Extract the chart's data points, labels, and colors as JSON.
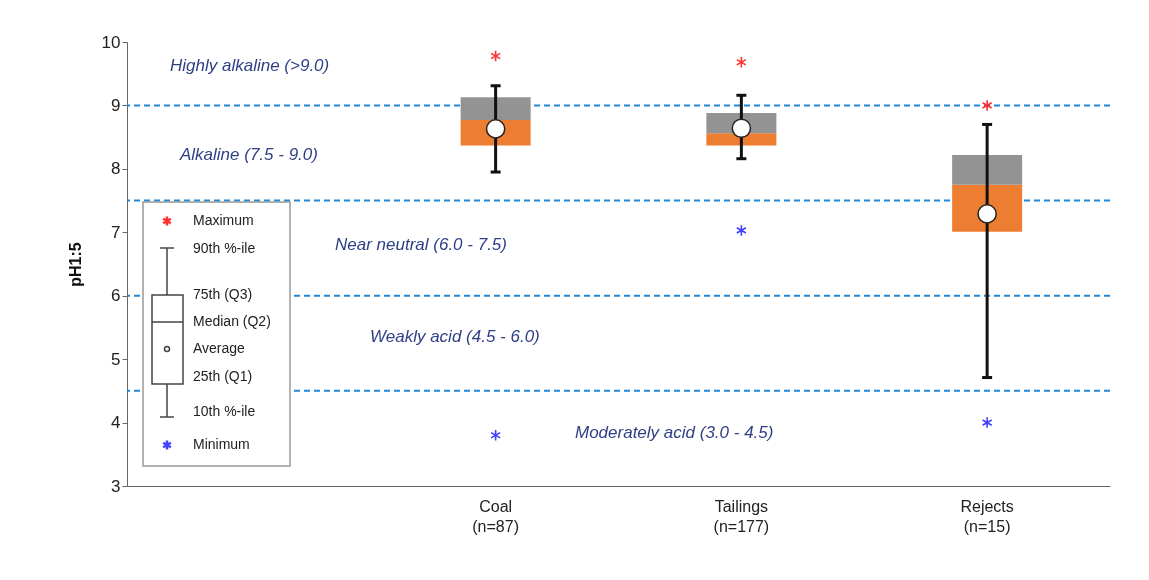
{
  "chart_data": {
    "type": "box",
    "ylabel": "pH1:5",
    "categories": [
      null,
      "Coal\n(n=87)",
      "Tailings\n(n=177)",
      "Rejects\n(n=15)"
    ],
    "boxes": [
      null,
      {
        "low": 7.95,
        "q1": 8.37,
        "median": 8.77,
        "q3": 9.13,
        "high": 9.31,
        "mean": 8.63
      },
      {
        "low": 8.16,
        "q1": 8.37,
        "median": 8.56,
        "q3": 8.88,
        "high": 9.16,
        "mean": 8.64
      },
      {
        "low": 4.71,
        "q1": 7.01,
        "median": 7.75,
        "q3": 8.22,
        "high": 8.7,
        "mean": 7.29
      }
    ],
    "colors": [
      null,
      [
        "#ed7d31",
        "#939393"
      ],
      [
        "#ed7d31",
        "#939393"
      ],
      [
        "#ed7d31",
        "#939393"
      ]
    ],
    "series": [
      {
        "type": "scatter",
        "name": "Maximum",
        "color": "#ff3030",
        "x": [
          "Coal\n(n=87)",
          "Tailings\n(n=177)",
          "Rejects\n(n=15)"
        ],
        "values": [
          9.78,
          9.68,
          9.0
        ]
      },
      {
        "type": "scatter",
        "name": "Minimum",
        "color": "#4040ff",
        "x": [
          "Coal\n(n=87)",
          "Tailings\n(n=177)",
          "Rejects\n(n=15)"
        ],
        "values": [
          3.8,
          7.03,
          4.0
        ]
      }
    ],
    "ylim": [
      3,
      10
    ],
    "yticks": [
      3,
      4,
      5,
      6,
      7,
      8,
      9,
      10
    ],
    "ref_lines": [
      {
        "axis": "y",
        "value": 9,
        "color": "#1f88d8",
        "line_style": "dashed"
      },
      {
        "axis": "y",
        "value": 7.5,
        "color": "#1f88d8",
        "line_style": "dashed"
      },
      {
        "axis": "y",
        "value": 6,
        "color": "#1f88d8",
        "line_style": "dashed"
      },
      {
        "axis": "y",
        "value": 4.5,
        "color": "#1f88d8",
        "line_style": "dashed"
      }
    ],
    "annotations": [
      "Highly alkaline (>9.0)",
      "Alkaline (7.5 - 9.0)",
      "Near neutral (6.0 - 7.5)",
      "Weakly acid (4.5 - 6.0)",
      "Moderately acid (3.0 - 4.5)",
      "90th %-ile",
      "75th (Q3)",
      "Median (Q2)",
      "Average",
      "25th (Q1)",
      "10th %-ile"
    ],
    "legend": "left"
  }
}
